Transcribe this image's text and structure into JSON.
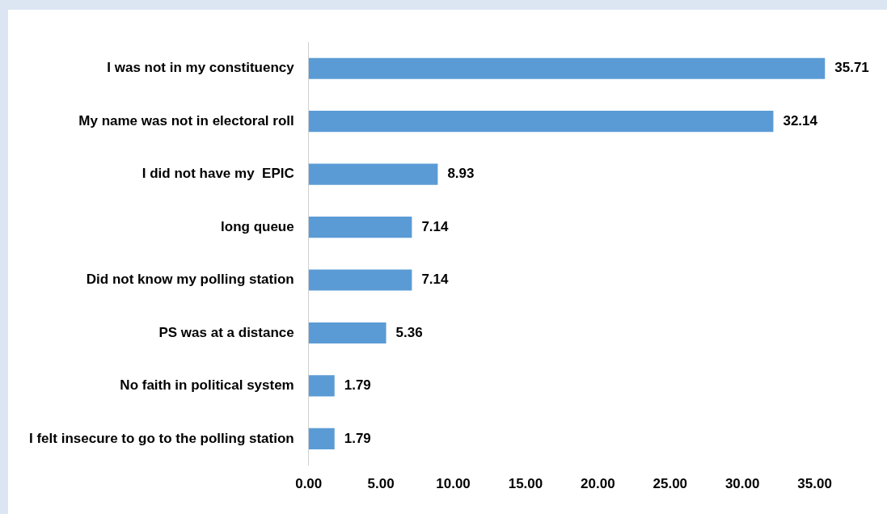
{
  "chart_data": {
    "type": "bar",
    "orientation": "horizontal",
    "categories": [
      "I was not in my constituency",
      "My name was not in electoral roll",
      "I did not have my  EPIC",
      "long queue",
      "Did not know my polling station",
      "PS was at a distance",
      "No faith in political system",
      "I felt insecure to go to the polling station"
    ],
    "values": [
      35.71,
      32.14,
      8.93,
      7.14,
      7.14,
      5.36,
      1.79,
      1.79
    ],
    "color": "#5b9bd5",
    "xlim": [
      0,
      40
    ],
    "xticks": [
      {
        "value": 0,
        "label": "0.00"
      },
      {
        "value": 5,
        "label": "5.00"
      },
      {
        "value": 10,
        "label": "10.00"
      },
      {
        "value": 15,
        "label": "15.00"
      },
      {
        "value": 20,
        "label": "20.00"
      },
      {
        "value": 25,
        "label": "25.00"
      },
      {
        "value": 30,
        "label": "30.00"
      },
      {
        "value": 35,
        "label": "35.00"
      }
    ],
    "data_labels": true,
    "grid": false,
    "legend": false
  }
}
